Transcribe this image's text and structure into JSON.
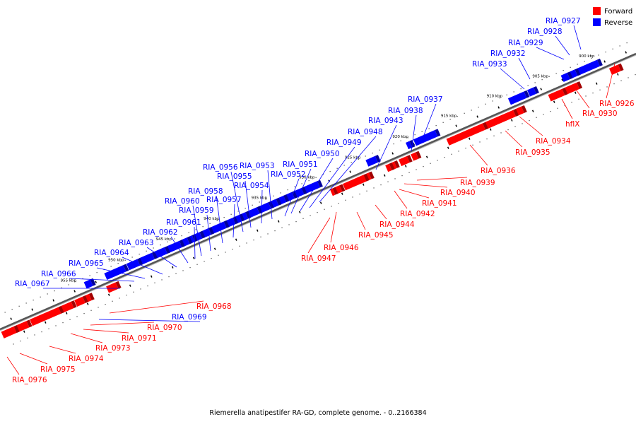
{
  "legend": [
    {
      "label": "Forward",
      "color": "#ff0000"
    },
    {
      "label": "Reverse",
      "color": "#0000ff"
    }
  ],
  "caption": "Riemerella anatipestifer RA-GD, complete genome. - 0..2166384",
  "ticks": [
    "900 kbp",
    "905 kbp",
    "910 kbp",
    "915 kbp",
    "920 kbp",
    "925 kbp",
    "930 kbp",
    "935 kbp",
    "940 kbp",
    "945 kbp",
    "950 kbp",
    "955 kbp"
  ],
  "genes": [
    {
      "name": "RIA_0926",
      "strand": "forward"
    },
    {
      "name": "RIA_0927",
      "strand": "reverse"
    },
    {
      "name": "RIA_0928",
      "strand": "reverse"
    },
    {
      "name": "RIA_0929",
      "strand": "reverse"
    },
    {
      "name": "RIA_0930",
      "strand": "forward"
    },
    {
      "name": "hflX",
      "strand": "forward"
    },
    {
      "name": "RIA_0932",
      "strand": "reverse"
    },
    {
      "name": "RIA_0933",
      "strand": "reverse"
    },
    {
      "name": "RIA_0934",
      "strand": "forward"
    },
    {
      "name": "RIA_0935",
      "strand": "forward"
    },
    {
      "name": "RIA_0936",
      "strand": "forward"
    },
    {
      "name": "RIA_0937",
      "strand": "reverse"
    },
    {
      "name": "RIA_0938",
      "strand": "reverse"
    },
    {
      "name": "RIA_0939",
      "strand": "forward"
    },
    {
      "name": "RIA_0940",
      "strand": "forward"
    },
    {
      "name": "RIA_0941",
      "strand": "forward"
    },
    {
      "name": "RIA_0942",
      "strand": "forward"
    },
    {
      "name": "RIA_0943",
      "strand": "reverse"
    },
    {
      "name": "RIA_0944",
      "strand": "forward"
    },
    {
      "name": "RIA_0945",
      "strand": "forward"
    },
    {
      "name": "RIA_0946",
      "strand": "forward"
    },
    {
      "name": "RIA_0947",
      "strand": "forward"
    },
    {
      "name": "RIA_0948",
      "strand": "reverse"
    },
    {
      "name": "RIA_0949",
      "strand": "reverse"
    },
    {
      "name": "RIA_0950",
      "strand": "reverse"
    },
    {
      "name": "RIA_0951",
      "strand": "reverse"
    },
    {
      "name": "RIA_0952",
      "strand": "reverse"
    },
    {
      "name": "RIA_0953",
      "strand": "reverse"
    },
    {
      "name": "RIA_0954",
      "strand": "reverse"
    },
    {
      "name": "RIA_0955",
      "strand": "reverse"
    },
    {
      "name": "RIA_0956",
      "strand": "reverse"
    },
    {
      "name": "RIA_0957",
      "strand": "reverse"
    },
    {
      "name": "RIA_0958",
      "strand": "reverse"
    },
    {
      "name": "RIA_0959",
      "strand": "reverse"
    },
    {
      "name": "RIA_0960",
      "strand": "reverse"
    },
    {
      "name": "RIA_0961",
      "strand": "reverse"
    },
    {
      "name": "RIA_0962",
      "strand": "reverse"
    },
    {
      "name": "RIA_0963",
      "strand": "reverse"
    },
    {
      "name": "RIA_0964",
      "strand": "reverse"
    },
    {
      "name": "RIA_0965",
      "strand": "reverse"
    },
    {
      "name": "RIA_0966",
      "strand": "reverse"
    },
    {
      "name": "RIA_0967",
      "strand": "reverse"
    },
    {
      "name": "RIA_0968",
      "strand": "forward"
    },
    {
      "name": "RIA_0969",
      "strand": "reverse"
    },
    {
      "name": "RIA_0970",
      "strand": "forward"
    },
    {
      "name": "RIA_0971",
      "strand": "forward"
    },
    {
      "name": "RIA_0973",
      "strand": "forward"
    },
    {
      "name": "RIA_0974",
      "strand": "forward"
    },
    {
      "name": "RIA_0975",
      "strand": "forward"
    },
    {
      "name": "RIA_0976",
      "strand": "forward"
    }
  ]
}
